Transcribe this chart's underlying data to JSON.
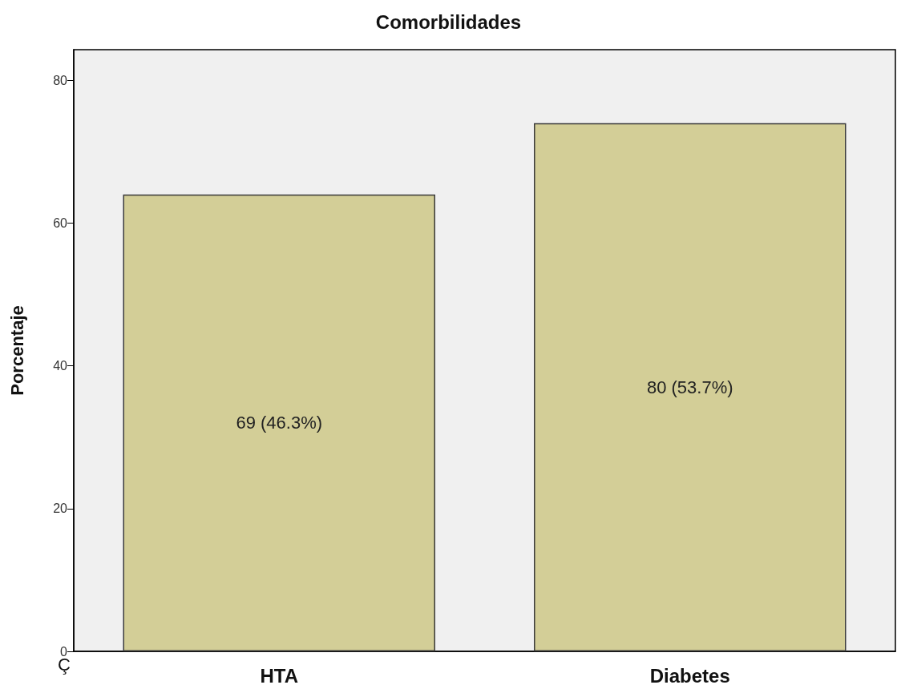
{
  "chart_data": {
    "type": "bar",
    "title": "Comorbilidades",
    "ylabel": "Porcentaje",
    "categories": [
      "HTA",
      "Diabetes"
    ],
    "values": [
      64,
      74
    ],
    "color": "#d3ce97",
    "ylim": [
      0,
      84.3
    ],
    "yticks": [
      0,
      20,
      40,
      60,
      80
    ],
    "grid": false,
    "annotations": [
      "69 (46.3%)",
      "80 (53.7%)",
      "Ç"
    ]
  }
}
